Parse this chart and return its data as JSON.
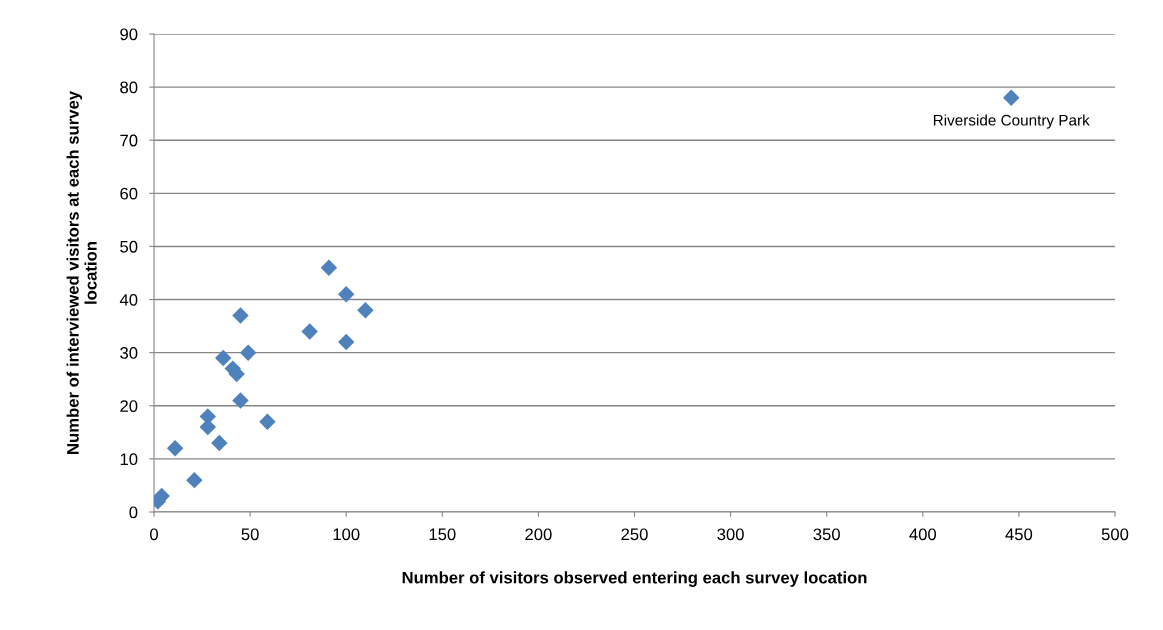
{
  "chart_data": {
    "type": "scatter",
    "xlabel": "Number of visitors observed entering each survey location",
    "ylabel": "Number of interviewed visitors at each survey\nlocation",
    "x": [
      2,
      4,
      11,
      21,
      28,
      28,
      34,
      36,
      41,
      43,
      45,
      45,
      49,
      59,
      81,
      91,
      100,
      100,
      110,
      446
    ],
    "series": [
      {
        "color": "#4f81bd",
        "values": [
          2,
          3,
          12,
          6,
          18,
          16,
          13,
          29,
          27,
          26,
          21,
          37,
          30,
          17,
          34,
          46,
          41,
          32,
          38,
          78
        ]
      }
    ],
    "xlim": [
      0,
      500
    ],
    "xticks": [
      0,
      50,
      100,
      150,
      200,
      250,
      300,
      350,
      400,
      450,
      500
    ],
    "ylim": [
      0,
      90
    ],
    "yticks": [
      0,
      10,
      20,
      30,
      40,
      50,
      60,
      70,
      80,
      90
    ],
    "grid": "y",
    "marker": "diamond",
    "legend": false,
    "annotations": [
      {
        "text": "Riverside Country Park",
        "x": 446,
        "y": 78
      }
    ]
  }
}
